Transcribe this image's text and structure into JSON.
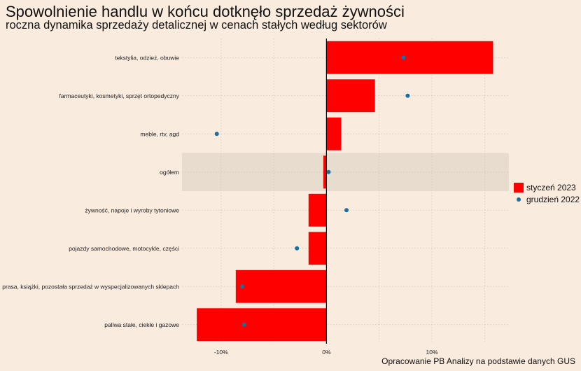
{
  "chart_data": {
    "type": "bar",
    "title": "Spowolnienie handlu w końcu dotknęło sprzedaż żywności",
    "subtitle": "roczna dynamika sprzedaży detalicznej w cenach stałych według sektorów",
    "caption": "Opracowanie PB Analizy na podstawie danych GUS",
    "xlabel": "",
    "ylabel": "",
    "orientation": "horizontal",
    "categories": [
      "tekstylia, odzież, obuwie",
      "farmaceutyki, kosmetyki, sprzęt ortopedyczny",
      "meble, rtv, agd",
      "ogółem",
      "żywność, napoje i wyroby tytoniowe",
      "pojazdy samochodowe, motocykle, części",
      "prasa, książki, pozostała sprzedaż w wyspecjalizowanych sklepach",
      "paliwa stałe, ciekłe i gazowe"
    ],
    "highlighted_category": "ogółem",
    "series": [
      {
        "name": "styczeń 2023",
        "kind": "bar",
        "color": "#ff0000",
        "values": [
          15.8,
          4.6,
          1.4,
          -0.3,
          -1.7,
          -1.7,
          -8.6,
          -12.3
        ]
      },
      {
        "name": "grudzień 2022",
        "kind": "point",
        "color": "#1a6fa0",
        "values": [
          7.3,
          7.7,
          -10.4,
          0.2,
          1.9,
          -2.8,
          -8.0,
          -7.8
        ]
      }
    ],
    "xlim": [
      -13.7,
      17.3
    ],
    "xticks": [
      -10,
      0,
      10
    ],
    "xtick_labels": [
      "-10%",
      "0%",
      "10%"
    ],
    "grid": true,
    "legend_position": "right"
  }
}
